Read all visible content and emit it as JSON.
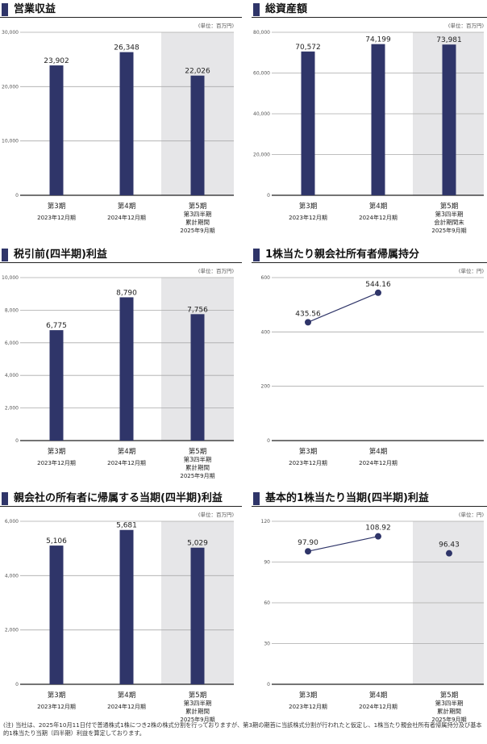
{
  "colors": {
    "bar": "#2f3569",
    "shade": "#e6e6e8",
    "grid": "#aaaaaa",
    "axis": "#222222",
    "text": "#222222",
    "tick": "#555555"
  },
  "chart_data": [
    {
      "type": "bar",
      "title": "営業収益",
      "unit": "(単位：百万円)",
      "ylim": [
        0,
        30000
      ],
      "yticks": [
        "0",
        "10,000",
        "20,000",
        "30,000"
      ],
      "ystep": 10000,
      "categories": [
        {
          "period": "第3期",
          "sub": [],
          "date": "2023年12月期"
        },
        {
          "period": "第4期",
          "sub": [],
          "date": "2024年12月期"
        },
        {
          "period": "第5期",
          "sub": [
            "第3四半期",
            "累計期間"
          ],
          "date": "2025年9月期"
        }
      ],
      "values": [
        23902,
        26348,
        22026
      ],
      "labels": [
        "23,902",
        "26,348",
        "22,026"
      ],
      "shaded": true
    },
    {
      "type": "bar",
      "title": "総資産額",
      "unit": "(単位：百万円)",
      "ylim": [
        0,
        80000
      ],
      "yticks": [
        "0",
        "20,000",
        "40,000",
        "60,000",
        "80,000"
      ],
      "ystep": 20000,
      "categories": [
        {
          "period": "第3期",
          "sub": [],
          "date": "2023年12月期"
        },
        {
          "period": "第4期",
          "sub": [],
          "date": "2024年12月期"
        },
        {
          "period": "第5期",
          "sub": [
            "第3四半期",
            "会計期間末"
          ],
          "date": "2025年9月期"
        }
      ],
      "values": [
        70572,
        74199,
        73981
      ],
      "labels": [
        "70,572",
        "74,199",
        "73,981"
      ],
      "shaded": true
    },
    {
      "type": "bar",
      "title": "税引前(四半期)利益",
      "unit": "(単位：百万円)",
      "ylim": [
        0,
        10000
      ],
      "yticks": [
        "0",
        "2,000",
        "4,000",
        "6,000",
        "8,000",
        "10,000"
      ],
      "ystep": 2000,
      "categories": [
        {
          "period": "第3期",
          "sub": [],
          "date": "2023年12月期"
        },
        {
          "period": "第4期",
          "sub": [],
          "date": "2024年12月期"
        },
        {
          "period": "第5期",
          "sub": [
            "第3四半期",
            "累計期間"
          ],
          "date": "2025年9月期"
        }
      ],
      "values": [
        6775,
        8790,
        7756
      ],
      "labels": [
        "6,775",
        "8,790",
        "7,756"
      ],
      "shaded": true
    },
    {
      "type": "line",
      "title": "1株当たり親会社所有者帰属持分",
      "unit": "(単位：円)",
      "ylim": [
        0,
        600
      ],
      "yticks": [
        "0",
        "200",
        "400",
        "600"
      ],
      "ystep": 200,
      "categories": [
        {
          "period": "第3期",
          "sub": [],
          "date": "2023年12月期"
        },
        {
          "period": "第4期",
          "sub": [],
          "date": "2024年12月期"
        }
      ],
      "values": [
        435.56,
        544.16
      ],
      "labels": [
        "435.56",
        "544.16"
      ],
      "shaded": false,
      "connected": [
        true,
        true
      ]
    },
    {
      "type": "bar",
      "title": "親会社の所有者に帰属する当期(四半期)利益",
      "unit": "(単位：百万円)",
      "ylim": [
        0,
        6000
      ],
      "yticks": [
        "0",
        "2,000",
        "4,000",
        "6,000"
      ],
      "ystep": 2000,
      "categories": [
        {
          "period": "第3期",
          "sub": [],
          "date": "2023年12月期"
        },
        {
          "period": "第4期",
          "sub": [],
          "date": "2024年12月期"
        },
        {
          "period": "第5期",
          "sub": [
            "第3四半期",
            "累計期間"
          ],
          "date": "2025年9月期"
        }
      ],
      "values": [
        5106,
        5681,
        5029
      ],
      "labels": [
        "5,106",
        "5,681",
        "5,029"
      ],
      "shaded": true
    },
    {
      "type": "line",
      "title": "基本的1株当たり当期(四半期)利益",
      "unit": "(単位：円)",
      "ylim": [
        0,
        120
      ],
      "yticks": [
        "0",
        "30",
        "60",
        "90",
        "120"
      ],
      "ystep": 30,
      "categories": [
        {
          "period": "第3期",
          "sub": [],
          "date": "2023年12月期"
        },
        {
          "period": "第4期",
          "sub": [],
          "date": "2024年12月期"
        },
        {
          "period": "第5期",
          "sub": [
            "第3四半期",
            "累計期間"
          ],
          "date": "2025年9月期"
        }
      ],
      "values": [
        97.9,
        108.92,
        96.43
      ],
      "labels": [
        "97.90",
        "108.92",
        "96.43"
      ],
      "shaded": true,
      "connected": [
        true,
        true,
        false
      ]
    }
  ],
  "footnote": "(注) 当社は、2025年10月11日付で普通株式1株につき2株の株式分割を行っておりますが、第3期の期首に当該株式分割が行われたと仮定し、1株当たり親会社所有者帰属持分及び基本的1株当たり当期（四半期）利益を算定しております。"
}
